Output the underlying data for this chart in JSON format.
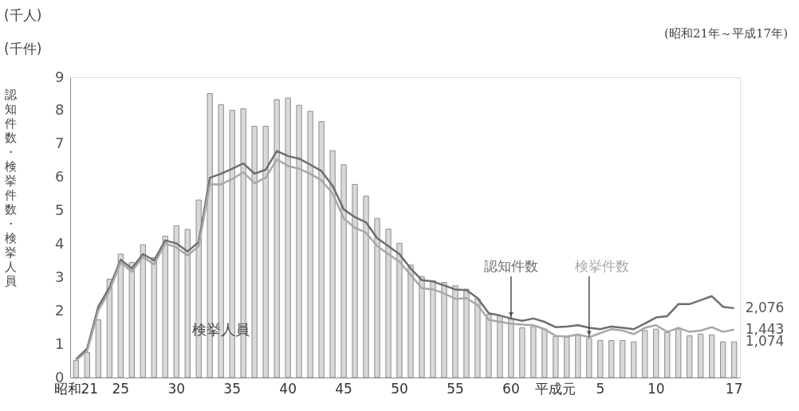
{
  "chart_data": {
    "type": "bar",
    "subtitle": "(昭和21年～平成17年)",
    "ylabel": "認知件数・検挙件数・検挙人員",
    "annotations": [
      "(千人)",
      "(千件)",
      {
        "text": "2,076",
        "x": "17",
        "y": 2.08
      },
      {
        "text": "1,443",
        "x": "17",
        "y": 1.44
      },
      {
        "text": "1,074",
        "x": "17",
        "y": 1.07
      }
    ],
    "categories": [
      "昭和21",
      null,
      null,
      null,
      "25",
      null,
      null,
      null,
      null,
      "30",
      null,
      null,
      null,
      null,
      "35",
      null,
      null,
      null,
      null,
      "40",
      null,
      null,
      null,
      null,
      "45",
      null,
      null,
      null,
      null,
      "50",
      null,
      null,
      null,
      null,
      "55",
      null,
      null,
      null,
      null,
      "60",
      null,
      null,
      null,
      "平成元",
      null,
      null,
      null,
      "5",
      null,
      null,
      null,
      null,
      "10",
      null,
      null,
      null,
      null,
      null,
      null,
      "17"
    ],
    "ylim": [
      0,
      9
    ],
    "yticks": [
      0,
      1,
      2,
      3,
      4,
      5,
      6,
      7,
      8,
      9
    ],
    "grid": false,
    "series": [
      {
        "name": "検挙人員",
        "color": "#d9d9d9",
        "values": [
          0.51,
          0.75,
          1.73,
          2.95,
          3.7,
          3.45,
          3.98,
          3.59,
          4.24,
          4.55,
          4.44,
          5.32,
          8.51,
          8.18,
          8.01,
          8.06,
          7.53,
          7.53,
          8.33,
          8.38,
          8.16,
          7.98,
          7.67,
          6.8,
          6.38,
          5.79,
          5.44,
          4.77,
          4.45,
          4.02,
          3.37,
          3.03,
          2.9,
          2.85,
          2.75,
          2.65,
          2.36,
          1.89,
          1.85,
          1.77,
          1.49,
          1.53,
          1.45,
          1.23,
          1.21,
          1.27,
          1.17,
          1.11,
          1.11,
          1.11,
          1.07,
          1.41,
          1.45,
          1.35,
          1.45,
          1.25,
          1.3,
          1.28,
          1.07,
          1.07
        ]
      },
      {
        "name": "認知件数",
        "type": "line",
        "color": "#6e6e6e",
        "values": [
          0.55,
          0.87,
          2.13,
          2.7,
          3.53,
          3.27,
          3.7,
          3.51,
          4.11,
          4.02,
          3.78,
          4.06,
          5.99,
          6.11,
          6.26,
          6.42,
          6.11,
          6.23,
          6.79,
          6.64,
          6.56,
          6.38,
          6.19,
          5.75,
          5.04,
          4.81,
          4.65,
          4.18,
          3.94,
          3.7,
          3.27,
          2.92,
          2.88,
          2.76,
          2.64,
          2.62,
          2.38,
          1.93,
          1.86,
          1.77,
          1.7,
          1.77,
          1.67,
          1.51,
          1.53,
          1.57,
          1.49,
          1.45,
          1.53,
          1.49,
          1.45,
          1.62,
          1.8,
          1.84,
          2.2,
          2.2,
          2.32,
          2.44,
          2.12,
          2.08
        ]
      },
      {
        "name": "検挙件数",
        "type": "line",
        "color": "#a8a8a8",
        "values": [
          0.51,
          0.79,
          2.01,
          2.6,
          3.45,
          3.17,
          3.62,
          3.39,
          4.02,
          3.9,
          3.66,
          3.94,
          5.79,
          5.79,
          5.95,
          6.15,
          5.83,
          5.99,
          6.54,
          6.34,
          6.26,
          6.11,
          5.91,
          5.52,
          4.77,
          4.49,
          4.34,
          3.94,
          3.7,
          3.47,
          3.07,
          2.68,
          2.64,
          2.52,
          2.36,
          2.38,
          2.17,
          1.73,
          1.67,
          1.61,
          1.59,
          1.57,
          1.45,
          1.25,
          1.23,
          1.29,
          1.21,
          1.33,
          1.45,
          1.41,
          1.3,
          1.49,
          1.57,
          1.37,
          1.49,
          1.37,
          1.41,
          1.51,
          1.37,
          1.44
        ]
      }
    ]
  }
}
